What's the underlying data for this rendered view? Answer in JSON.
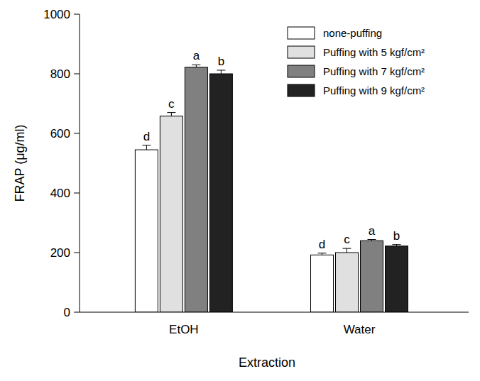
{
  "chart_data": {
    "type": "bar",
    "x_label": "Extraction",
    "y_label": "FRAP (μg/ml)",
    "categories": [
      "EtOH",
      "Water"
    ],
    "series": [
      {
        "name": "none-puffing",
        "color": "#ffffff",
        "values": [
          545,
          192
        ],
        "errors": [
          15,
          6
        ],
        "annotations": [
          "d",
          "d"
        ]
      },
      {
        "name": "Puffing with 5 kgf/cm²",
        "color": "#e0e0e0",
        "values": [
          658,
          200
        ],
        "errors": [
          12,
          14
        ],
        "annotations": [
          "c",
          "c"
        ]
      },
      {
        "name": "Puffing with 7 kgf/cm²",
        "color": "#808080",
        "values": [
          822,
          240
        ],
        "errors": [
          8,
          4
        ],
        "annotations": [
          "a",
          "a"
        ]
      },
      {
        "name": "Puffing with 9 kgf/cm²",
        "color": "#222222",
        "values": [
          800,
          222
        ],
        "errors": [
          12,
          5
        ],
        "annotations": [
          "b",
          "b"
        ]
      }
    ],
    "ylim": [
      0,
      1000
    ],
    "yticks": [
      0,
      200,
      400,
      600,
      800,
      1000
    ],
    "grid": false,
    "legend": "upper right"
  }
}
